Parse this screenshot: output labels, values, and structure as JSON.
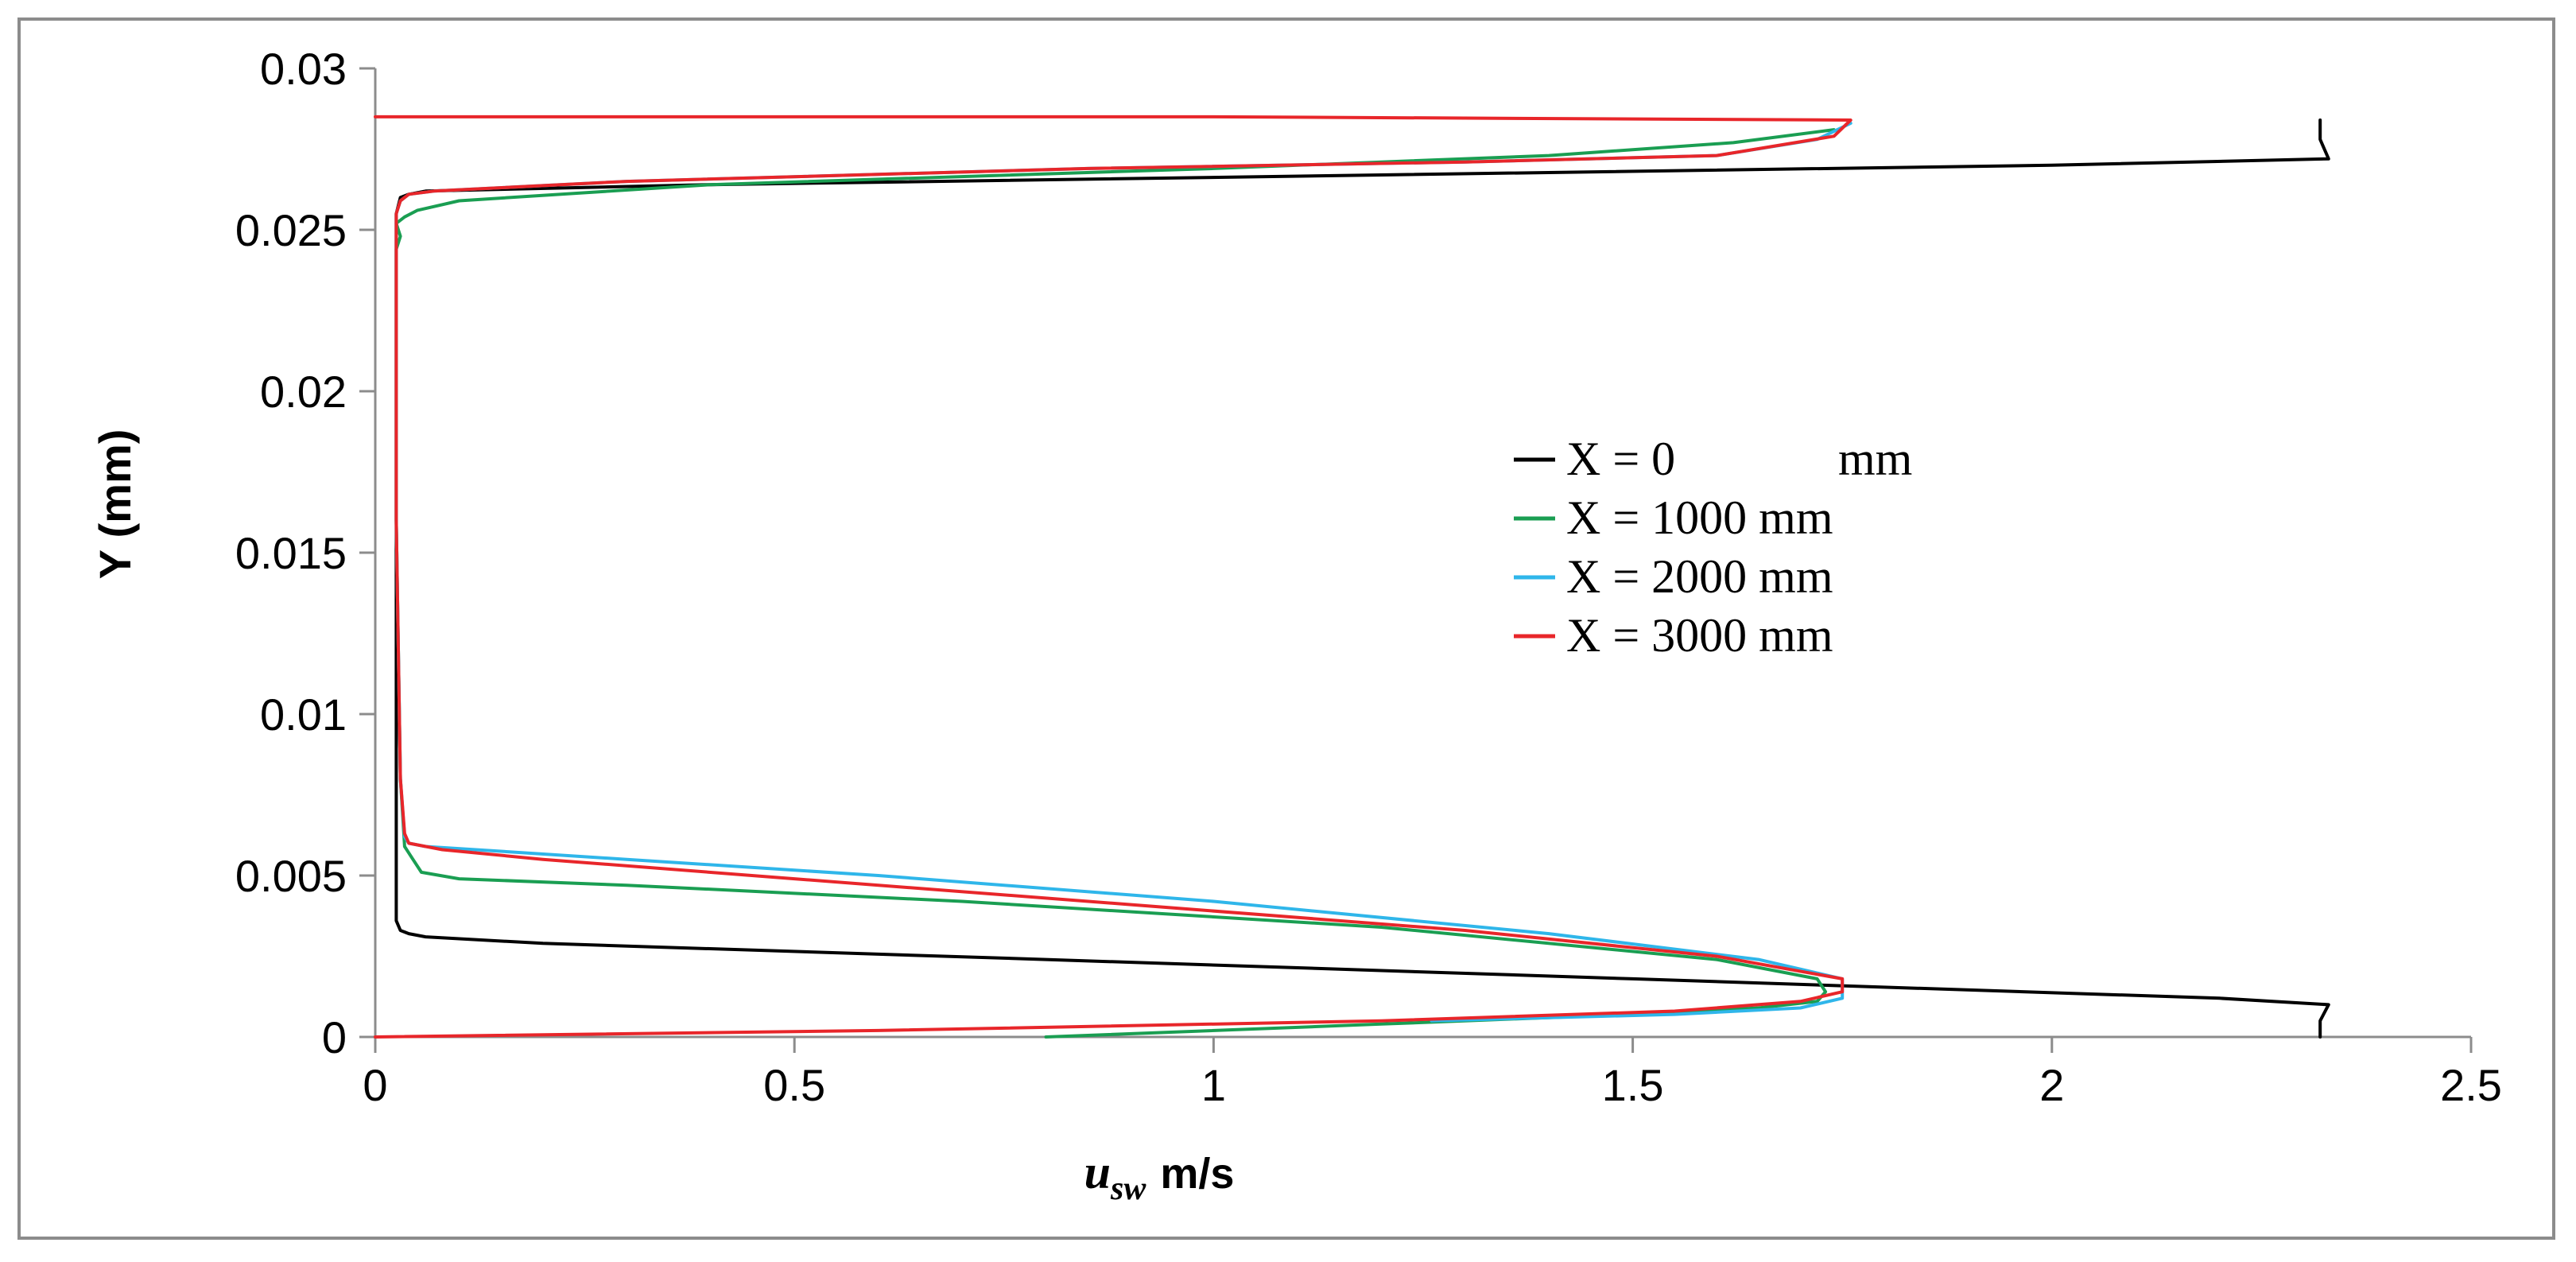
{
  "chart_data": {
    "type": "line",
    "xlabel": {
      "var": "u",
      "sub": "sw",
      "unit": "m/s"
    },
    "ylabel": "Y (mm)",
    "xlim": [
      0,
      2.5
    ],
    "ylim": [
      0,
      0.03
    ],
    "xticks": [
      0,
      0.5,
      1,
      1.5,
      2,
      2.5
    ],
    "xtick_labels": [
      "0",
      "0.5",
      "1",
      "1.5",
      "2",
      "2.5"
    ],
    "yticks": [
      0,
      0.005,
      0.01,
      0.015,
      0.02,
      0.025,
      0.03
    ],
    "ytick_labels": [
      "0",
      "0.005",
      "0.01",
      "0.015",
      "0.02",
      "0.025",
      "0.03"
    ],
    "grid": false,
    "legend_position": "center-right",
    "series": [
      {
        "name": "X = 0 mm",
        "legend_label": "X = 0",
        "legend_unit": "mm",
        "color": "#000000",
        "x": [
          2.32,
          2.32,
          2.33,
          2.2,
          1.5,
          0.8,
          0.2,
          0.06,
          0.04,
          0.03,
          0.025,
          0.025,
          0.025,
          0.025,
          0.025,
          0.03,
          0.04,
          0.06,
          0.4,
          1.2,
          2.0,
          2.33,
          2.32,
          2.32
        ],
        "y": [
          0.0,
          0.0005,
          0.001,
          0.0012,
          0.0018,
          0.0024,
          0.0029,
          0.0031,
          0.0032,
          0.0033,
          0.0036,
          0.006,
          0.015,
          0.024,
          0.0255,
          0.026,
          0.0261,
          0.0262,
          0.0264,
          0.0267,
          0.027,
          0.0272,
          0.0278,
          0.0284
        ]
      },
      {
        "name": "X = 1000 mm",
        "legend_label": "X = 1000 mm",
        "legend_unit": "",
        "color": "#1a9e52",
        "x": [
          0.8,
          1.2,
          1.5,
          1.65,
          1.72,
          1.73,
          1.72,
          1.6,
          1.2,
          0.7,
          0.3,
          0.1,
          0.055,
          0.045,
          0.035,
          0.03,
          0.025,
          0.025,
          0.025,
          0.03,
          0.025,
          0.035,
          0.05,
          0.1,
          0.4,
          1.0,
          1.4,
          1.62,
          1.74
        ],
        "y": [
          0.0,
          0.0004,
          0.0007,
          0.0009,
          0.0011,
          0.0014,
          0.0018,
          0.0024,
          0.0034,
          0.0042,
          0.0047,
          0.0049,
          0.0051,
          0.0055,
          0.0059,
          0.008,
          0.016,
          0.024,
          0.0244,
          0.0248,
          0.0252,
          0.0254,
          0.0256,
          0.0259,
          0.0264,
          0.0269,
          0.0273,
          0.0277,
          0.0281
        ]
      },
      {
        "name": "X = 2000 mm",
        "legend_label": "X = 2000 mm",
        "legend_unit": "",
        "color": "#2fb6ea",
        "x": [
          1.26,
          1.55,
          1.7,
          1.75,
          1.75,
          1.65,
          1.4,
          1.0,
          0.6,
          0.3,
          0.12,
          0.06,
          0.04,
          0.035,
          0.03,
          0.025,
          0.025,
          0.03,
          0.04,
          0.07,
          0.3,
          0.85,
          1.3,
          1.6,
          1.72,
          1.76
        ],
        "y": [
          0.0005,
          0.0007,
          0.0009,
          0.0012,
          0.0018,
          0.0024,
          0.0032,
          0.0042,
          0.005,
          0.0055,
          0.0058,
          0.0059,
          0.006,
          0.0062,
          0.008,
          0.016,
          0.0255,
          0.0259,
          0.0261,
          0.0262,
          0.0265,
          0.0269,
          0.0271,
          0.0273,
          0.0278,
          0.0283
        ]
      },
      {
        "name": "X = 3000 mm",
        "legend_label": "X = 3000 mm",
        "legend_unit": "",
        "color": "#e8262a",
        "x": [
          0.0,
          0.6,
          1.2,
          1.55,
          1.7,
          1.75,
          1.75,
          1.6,
          1.3,
          0.9,
          0.5,
          0.2,
          0.08,
          0.04,
          0.035,
          0.03,
          0.025,
          0.025,
          0.03,
          0.04,
          0.07,
          0.3,
          0.85,
          1.3,
          1.6,
          1.74,
          1.76,
          1.0,
          0.0
        ],
        "y": [
          0.0,
          0.0002,
          0.0005,
          0.0008,
          0.0011,
          0.0014,
          0.0018,
          0.0025,
          0.0033,
          0.0041,
          0.0049,
          0.0055,
          0.0058,
          0.006,
          0.0063,
          0.008,
          0.016,
          0.0255,
          0.0259,
          0.0261,
          0.0262,
          0.0265,
          0.0269,
          0.0271,
          0.0273,
          0.0279,
          0.0284,
          0.0285,
          0.0285
        ]
      }
    ]
  }
}
